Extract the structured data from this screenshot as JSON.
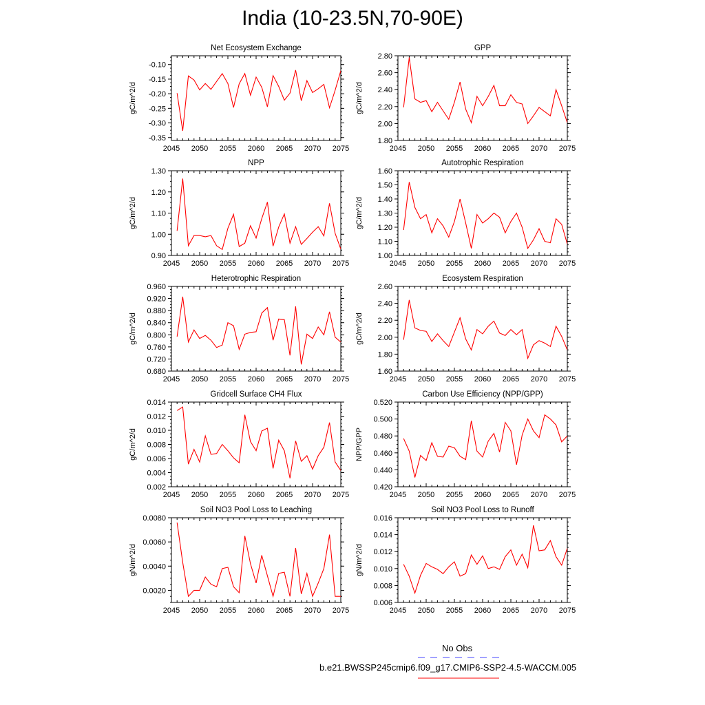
{
  "title": "India (10-23.5N,70-90E)",
  "colors": {
    "model": "#ff0000",
    "obs": "#6a6aff",
    "axis": "#000000"
  },
  "legend": {
    "obs_label": "No Obs",
    "model_label": "b.e21.BWSSP245cmip6.f09_g17.CMIP6-SSP2-4.5-WACCM.005"
  },
  "chart_data": [
    {
      "type": "line",
      "title": "Net Ecosystem Exchange",
      "ylabel": "gC/m^2/d",
      "xlim": [
        2045,
        2075
      ],
      "ylim": [
        -0.36,
        -0.07
      ],
      "xticks": [
        2045,
        2050,
        2055,
        2060,
        2065,
        2070,
        2075
      ],
      "yticks": [
        -0.35,
        -0.3,
        -0.25,
        -0.2,
        -0.15,
        -0.1
      ],
      "ytick_labels": [
        "-0.35",
        "-0.30",
        "-0.25",
        "-0.20",
        "-0.15",
        "-0.10"
      ],
      "x": [
        2046,
        2047,
        2048,
        2049,
        2050,
        2051,
        2052,
        2053,
        2054,
        2055,
        2056,
        2057,
        2058,
        2059,
        2060,
        2061,
        2062,
        2063,
        2064,
        2065,
        2066,
        2067,
        2068,
        2069,
        2070,
        2071,
        2072,
        2073,
        2074,
        2075
      ],
      "y": [
        -0.198,
        -0.327,
        -0.139,
        -0.153,
        -0.187,
        -0.165,
        -0.185,
        -0.158,
        -0.131,
        -0.165,
        -0.247,
        -0.166,
        -0.131,
        -0.205,
        -0.143,
        -0.178,
        -0.245,
        -0.138,
        -0.175,
        -0.222,
        -0.198,
        -0.119,
        -0.224,
        -0.155,
        -0.196,
        -0.183,
        -0.168,
        -0.248,
        -0.188,
        -0.121
      ]
    },
    {
      "type": "line",
      "title": "GPP",
      "ylabel": "gC/m^2/d",
      "xlim": [
        2045,
        2075
      ],
      "ylim": [
        1.8,
        2.8
      ],
      "xticks": [
        2045,
        2050,
        2055,
        2060,
        2065,
        2070,
        2075
      ],
      "yticks": [
        1.8,
        2.0,
        2.2,
        2.4,
        2.6,
        2.8
      ],
      "ytick_labels": [
        "1.80",
        "2.00",
        "2.20",
        "2.40",
        "2.60",
        "2.80"
      ],
      "x": [
        2046,
        2047,
        2048,
        2049,
        2050,
        2051,
        2052,
        2053,
        2054,
        2055,
        2056,
        2057,
        2058,
        2059,
        2060,
        2061,
        2062,
        2063,
        2064,
        2065,
        2066,
        2067,
        2068,
        2069,
        2070,
        2071,
        2072,
        2073,
        2074,
        2075
      ],
      "y": [
        2.19,
        2.78,
        2.29,
        2.25,
        2.27,
        2.14,
        2.25,
        2.15,
        2.05,
        2.25,
        2.49,
        2.17,
        2.01,
        2.32,
        2.21,
        2.32,
        2.45,
        2.21,
        2.21,
        2.34,
        2.25,
        2.23,
        2.0,
        2.09,
        2.19,
        2.14,
        2.09,
        2.4,
        2.21,
        2.01
      ]
    },
    {
      "type": "line",
      "title": "NPP",
      "ylabel": "gC/m^2/d",
      "xlim": [
        2045,
        2075
      ],
      "ylim": [
        0.9,
        1.3
      ],
      "xticks": [
        2045,
        2050,
        2055,
        2060,
        2065,
        2070,
        2075
      ],
      "yticks": [
        0.9,
        1.0,
        1.1,
        1.2,
        1.3
      ],
      "ytick_labels": [
        "0.90",
        "1.00",
        "1.10",
        "1.20",
        "1.30"
      ],
      "x": [
        2046,
        2047,
        2048,
        2049,
        2050,
        2051,
        2052,
        2053,
        2054,
        2055,
        2056,
        2057,
        2058,
        2059,
        2060,
        2061,
        2062,
        2063,
        2064,
        2065,
        2066,
        2067,
        2068,
        2069,
        2070,
        2071,
        2072,
        2073,
        2074,
        2075
      ],
      "y": [
        1.016,
        1.263,
        0.946,
        0.994,
        0.994,
        0.988,
        0.994,
        0.946,
        0.928,
        1.028,
        1.094,
        0.942,
        0.958,
        1.04,
        0.982,
        1.074,
        1.152,
        0.944,
        1.034,
        1.096,
        0.958,
        1.036,
        0.952,
        0.98,
        1.01,
        1.036,
        0.992,
        1.146,
        1.004,
        0.93
      ]
    },
    {
      "type": "line",
      "title": "Autotrophic Respiration",
      "ylabel": "gC/m^2/d",
      "xlim": [
        2045,
        2075
      ],
      "ylim": [
        1.0,
        1.6
      ],
      "xticks": [
        2045,
        2050,
        2055,
        2060,
        2065,
        2070,
        2075
      ],
      "yticks": [
        1.0,
        1.1,
        1.2,
        1.3,
        1.4,
        1.5,
        1.6
      ],
      "ytick_labels": [
        "1.00",
        "1.10",
        "1.20",
        "1.30",
        "1.40",
        "1.50",
        "1.60"
      ],
      "x": [
        2046,
        2047,
        2048,
        2049,
        2050,
        2051,
        2052,
        2053,
        2054,
        2055,
        2056,
        2057,
        2058,
        2059,
        2060,
        2061,
        2062,
        2063,
        2064,
        2065,
        2066,
        2067,
        2068,
        2069,
        2070,
        2071,
        2072,
        2073,
        2074,
        2075
      ],
      "y": [
        1.18,
        1.52,
        1.34,
        1.26,
        1.29,
        1.16,
        1.26,
        1.21,
        1.13,
        1.24,
        1.4,
        1.23,
        1.05,
        1.29,
        1.23,
        1.26,
        1.3,
        1.27,
        1.16,
        1.24,
        1.3,
        1.2,
        1.05,
        1.11,
        1.19,
        1.1,
        1.09,
        1.26,
        1.22,
        1.08
      ]
    },
    {
      "type": "line",
      "title": "Heterotrophic Respiration",
      "ylabel": "gC/m^2/d",
      "xlim": [
        2045,
        2075
      ],
      "ylim": [
        0.68,
        0.96
      ],
      "xticks": [
        2045,
        2050,
        2055,
        2060,
        2065,
        2070,
        2075
      ],
      "yticks": [
        0.68,
        0.72,
        0.76,
        0.8,
        0.84,
        0.88,
        0.92,
        0.96
      ],
      "ytick_labels": [
        "0.680",
        "0.720",
        "0.760",
        "0.800",
        "0.840",
        "0.880",
        "0.920",
        "0.960"
      ],
      "x": [
        2046,
        2047,
        2048,
        2049,
        2050,
        2051,
        2052,
        2053,
        2054,
        2055,
        2056,
        2057,
        2058,
        2059,
        2060,
        2061,
        2062,
        2063,
        2064,
        2065,
        2066,
        2067,
        2068,
        2069,
        2070,
        2071,
        2072,
        2073,
        2074,
        2075
      ],
      "y": [
        0.794,
        0.926,
        0.776,
        0.816,
        0.788,
        0.798,
        0.782,
        0.758,
        0.766,
        0.84,
        0.83,
        0.752,
        0.802,
        0.808,
        0.81,
        0.872,
        0.89,
        0.782,
        0.852,
        0.85,
        0.732,
        0.894,
        0.702,
        0.802,
        0.788,
        0.826,
        0.8,
        0.876,
        0.792,
        0.776
      ]
    },
    {
      "type": "line",
      "title": "Ecosystem Respiration",
      "ylabel": "gC/m^2/d",
      "xlim": [
        2045,
        2075
      ],
      "ylim": [
        1.6,
        2.6
      ],
      "xticks": [
        2045,
        2050,
        2055,
        2060,
        2065,
        2070,
        2075
      ],
      "yticks": [
        1.6,
        1.8,
        2.0,
        2.2,
        2.4,
        2.6
      ],
      "ytick_labels": [
        "1.60",
        "1.80",
        "2.00",
        "2.20",
        "2.40",
        "2.60"
      ],
      "x": [
        2046,
        2047,
        2048,
        2049,
        2050,
        2051,
        2052,
        2053,
        2054,
        2055,
        2056,
        2057,
        2058,
        2059,
        2060,
        2061,
        2062,
        2063,
        2064,
        2065,
        2066,
        2067,
        2068,
        2069,
        2070,
        2071,
        2072,
        2073,
        2074,
        2075
      ],
      "y": [
        1.97,
        2.44,
        2.11,
        2.08,
        2.07,
        1.95,
        2.04,
        1.96,
        1.89,
        2.06,
        2.23,
        1.98,
        1.85,
        2.09,
        2.04,
        2.13,
        2.19,
        2.05,
        2.02,
        2.09,
        2.03,
        2.09,
        1.75,
        1.91,
        1.96,
        1.93,
        1.89,
        2.13,
        2.01,
        1.85
      ]
    },
    {
      "type": "line",
      "title": "Gridcell Surface CH4 Flux",
      "ylabel": "gC/m^2/d",
      "xlim": [
        2045,
        2075
      ],
      "ylim": [
        0.002,
        0.014
      ],
      "xticks": [
        2045,
        2050,
        2055,
        2060,
        2065,
        2070,
        2075
      ],
      "yticks": [
        0.002,
        0.004,
        0.006,
        0.008,
        0.01,
        0.012,
        0.014
      ],
      "ytick_labels": [
        "0.002",
        "0.004",
        "0.006",
        "0.008",
        "0.010",
        "0.012",
        "0.014"
      ],
      "x": [
        2046,
        2047,
        2048,
        2049,
        2050,
        2051,
        2052,
        2053,
        2054,
        2055,
        2056,
        2057,
        2058,
        2059,
        2060,
        2061,
        2062,
        2063,
        2064,
        2065,
        2066,
        2067,
        2068,
        2069,
        2070,
        2071,
        2072,
        2073,
        2074,
        2075
      ],
      "y": [
        0.0128,
        0.0133,
        0.0052,
        0.0073,
        0.0055,
        0.0092,
        0.0066,
        0.0067,
        0.008,
        0.0071,
        0.0061,
        0.0054,
        0.0122,
        0.0084,
        0.0071,
        0.0099,
        0.0103,
        0.0046,
        0.0086,
        0.0071,
        0.0032,
        0.0085,
        0.0056,
        0.0064,
        0.0045,
        0.0064,
        0.0076,
        0.0111,
        0.0055,
        0.0043
      ]
    },
    {
      "type": "line",
      "title": "Carbon Use Efficiency (NPP/GPP)",
      "ylabel": "NPP/GPP",
      "xlim": [
        2045,
        2075
      ],
      "ylim": [
        0.42,
        0.52
      ],
      "xticks": [
        2045,
        2050,
        2055,
        2060,
        2065,
        2070,
        2075
      ],
      "yticks": [
        0.42,
        0.44,
        0.46,
        0.48,
        0.5,
        0.52
      ],
      "ytick_labels": [
        "0.420",
        "0.440",
        "0.460",
        "0.480",
        "0.500",
        "0.520"
      ],
      "x": [
        2046,
        2047,
        2048,
        2049,
        2050,
        2051,
        2052,
        2053,
        2054,
        2055,
        2056,
        2057,
        2058,
        2059,
        2060,
        2061,
        2062,
        2063,
        2064,
        2065,
        2066,
        2067,
        2068,
        2069,
        2070,
        2071,
        2072,
        2073,
        2074,
        2075
      ],
      "y": [
        0.477,
        0.462,
        0.431,
        0.457,
        0.451,
        0.472,
        0.456,
        0.455,
        0.468,
        0.466,
        0.456,
        0.452,
        0.498,
        0.462,
        0.455,
        0.474,
        0.483,
        0.461,
        0.496,
        0.486,
        0.446,
        0.481,
        0.5,
        0.486,
        0.478,
        0.505,
        0.5,
        0.493,
        0.473,
        0.48
      ]
    },
    {
      "type": "line",
      "title": "Soil NO3 Pool Loss to Leaching",
      "ylabel": "gN/m^2/d",
      "xlim": [
        2045,
        2075
      ],
      "ylim": [
        0.001,
        0.008
      ],
      "xticks": [
        2045,
        2050,
        2055,
        2060,
        2065,
        2070,
        2075
      ],
      "yticks": [
        0.002,
        0.004,
        0.006,
        0.008
      ],
      "ytick_labels": [
        "0.0020",
        "0.0040",
        "0.0060",
        "0.0080"
      ],
      "x": [
        2046,
        2047,
        2048,
        2049,
        2050,
        2051,
        2052,
        2053,
        2054,
        2055,
        2056,
        2057,
        2058,
        2059,
        2060,
        2061,
        2062,
        2063,
        2064,
        2065,
        2066,
        2067,
        2068,
        2069,
        2070,
        2071,
        2072,
        2073,
        2074,
        2075
      ],
      "y": [
        0.0076,
        0.0043,
        0.0015,
        0.002,
        0.002,
        0.0031,
        0.0025,
        0.0023,
        0.0038,
        0.0039,
        0.0023,
        0.0018,
        0.0065,
        0.0042,
        0.0026,
        0.0049,
        0.0032,
        0.0015,
        0.0034,
        0.0035,
        0.0015,
        0.0055,
        0.0017,
        0.0034,
        0.0015,
        0.0026,
        0.0038,
        0.0066,
        0.0015,
        0.0015
      ]
    },
    {
      "type": "line",
      "title": "Soil NO3 Pool Loss to Runoff",
      "ylabel": "gN/m^2/d",
      "xlim": [
        2045,
        2075
      ],
      "ylim": [
        0.006,
        0.016
      ],
      "xticks": [
        2045,
        2050,
        2055,
        2060,
        2065,
        2070,
        2075
      ],
      "yticks": [
        0.006,
        0.008,
        0.01,
        0.012,
        0.014,
        0.016
      ],
      "ytick_labels": [
        "0.006",
        "0.008",
        "0.010",
        "0.012",
        "0.014",
        "0.016"
      ],
      "x": [
        2046,
        2047,
        2048,
        2049,
        2050,
        2051,
        2052,
        2053,
        2054,
        2055,
        2056,
        2057,
        2058,
        2059,
        2060,
        2061,
        2062,
        2063,
        2064,
        2065,
        2066,
        2067,
        2068,
        2069,
        2070,
        2071,
        2072,
        2073,
        2074,
        2075
      ],
      "y": [
        0.0105,
        0.0091,
        0.0071,
        0.0092,
        0.0106,
        0.0102,
        0.0099,
        0.0094,
        0.0102,
        0.0108,
        0.0091,
        0.0094,
        0.0116,
        0.0105,
        0.0115,
        0.01,
        0.0102,
        0.0099,
        0.0114,
        0.0122,
        0.0104,
        0.0117,
        0.0101,
        0.0151,
        0.0121,
        0.0122,
        0.0133,
        0.0114,
        0.0104,
        0.0124
      ]
    }
  ]
}
